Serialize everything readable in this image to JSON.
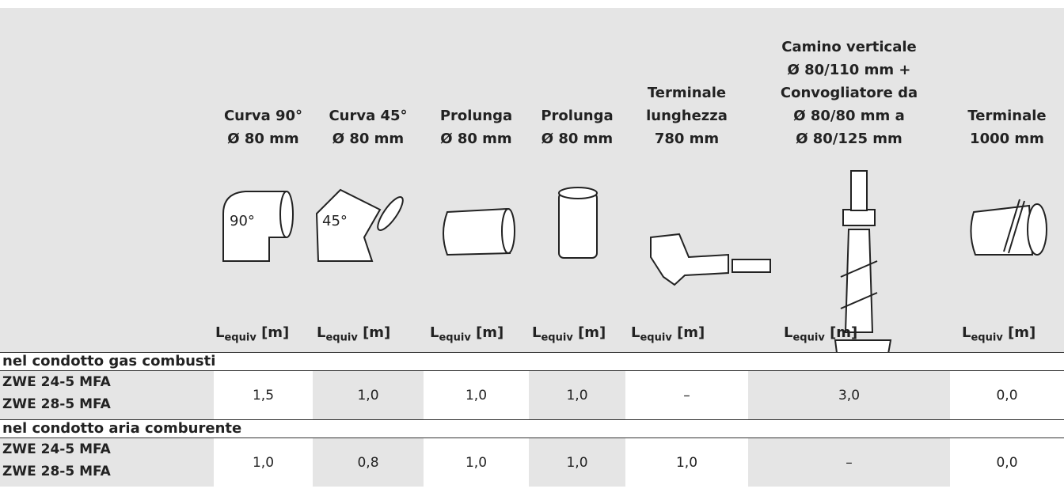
{
  "header": {
    "columns": [
      {
        "lines": [
          "Curva 90°",
          "Ø 80 mm"
        ]
      },
      {
        "lines": [
          "Curva 45°",
          "Ø 80 mm"
        ]
      },
      {
        "lines": [
          "Prolunga",
          "Ø 80 mm"
        ]
      },
      {
        "lines": [
          "Prolunga",
          "Ø 80 mm"
        ]
      },
      {
        "lines": [
          "Terminale",
          "lunghezza",
          "780 mm"
        ]
      },
      {
        "lines": [
          "Camino verticale",
          "Ø 80/110 mm +",
          "Convogliatore da",
          "Ø 80/80 mm a",
          "Ø 80/125 mm"
        ]
      },
      {
        "lines": [
          "Terminale",
          "1000 mm"
        ]
      }
    ],
    "icon_labels": [
      "90°",
      "45°"
    ],
    "equiv_label": {
      "base": "L",
      "sub": "equiv",
      "unit": "[m]"
    }
  },
  "sections": [
    {
      "title": "nel condotto gas combusti",
      "models": [
        "ZWE 24-5 MFA",
        "ZWE 28-5 MFA"
      ],
      "values": [
        "1,5",
        "1,0",
        "1,0",
        "1,0",
        "–",
        "3,0",
        "0,0"
      ]
    },
    {
      "title": "nel condotto aria comburente",
      "models": [
        "ZWE 24-5 MFA",
        "ZWE 28-5 MFA"
      ],
      "values": [
        "1,0",
        "0,8",
        "1,0",
        "1,0",
        "1,0",
        "–",
        "0,0"
      ]
    }
  ]
}
